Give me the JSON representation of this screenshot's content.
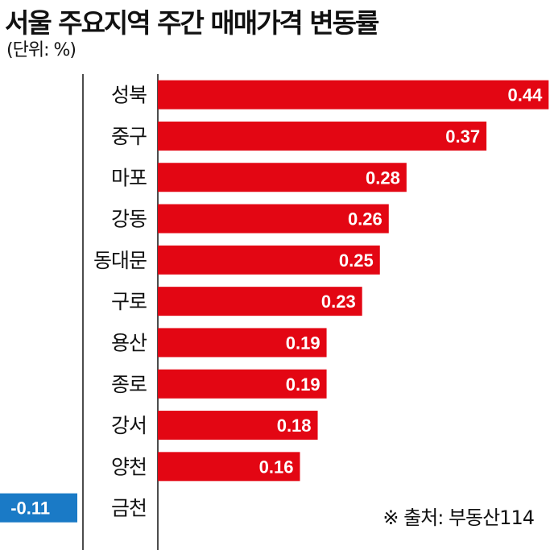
{
  "title": "서울 주요지역 주간 매매가격 변동률",
  "unit": "(단위: %)",
  "source": "※ 출처: 부동산114",
  "colors": {
    "positive": "#e30613",
    "negative": "#1a7ac6",
    "axis": "#111111"
  },
  "chart_data": {
    "type": "bar",
    "orientation": "horizontal",
    "categories": [
      "성북",
      "중구",
      "마포",
      "강동",
      "동대문",
      "구로",
      "용산",
      "종로",
      "강서",
      "양천",
      "금천"
    ],
    "values": [
      0.44,
      0.37,
      0.28,
      0.26,
      0.25,
      0.23,
      0.19,
      0.19,
      0.18,
      0.16,
      -0.11
    ],
    "value_labels": [
      "0.44",
      "0.37",
      "0.28",
      "0.26",
      "0.25",
      "0.23",
      "0.19",
      "0.19",
      "0.18",
      "0.16",
      "-0.11"
    ],
    "title": "서울 주요지역 주간 매매가격 변동률",
    "xlabel": "",
    "ylabel": "",
    "xlim": [
      -0.11,
      0.44
    ],
    "grid": false,
    "legend": "none"
  }
}
